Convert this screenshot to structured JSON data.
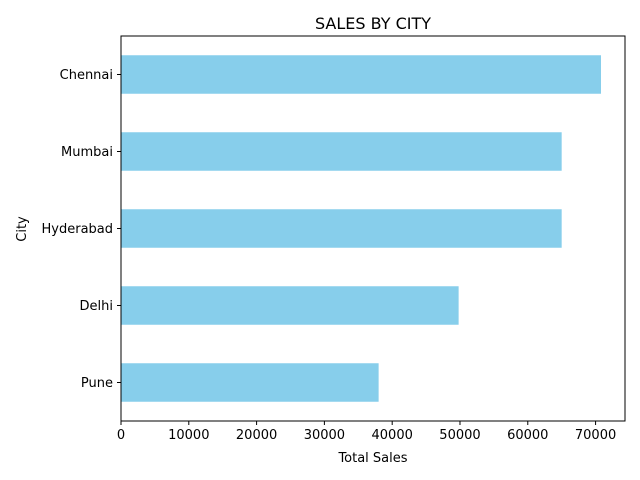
{
  "chart_data": {
    "type": "bar",
    "orientation": "horizontal",
    "title": "SALES BY CITY",
    "xlabel": "Total Sales",
    "ylabel": "City",
    "categories": [
      "Chennai",
      "Mumbai",
      "Hyderabad",
      "Delhi",
      "Pune"
    ],
    "values": [
      70800,
      65000,
      65000,
      49800,
      38000
    ],
    "xlim": [
      0,
      74340
    ],
    "xticks": [
      0,
      10000,
      20000,
      30000,
      40000,
      50000,
      60000,
      70000
    ],
    "grid": false,
    "legend": "none",
    "bar_color": "#87ceeb"
  }
}
